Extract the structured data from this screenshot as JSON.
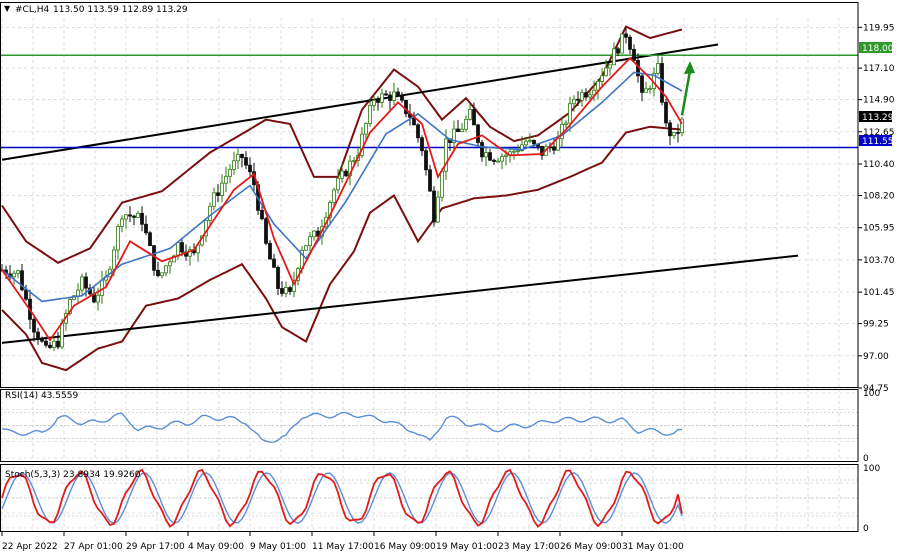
{
  "header": {
    "arrow_symbol": "▼",
    "symbol_text": "#CL,H4",
    "ohlc_text": "113.50 113.59 112.89 113.29"
  },
  "rsi_panel": {
    "label": "RSI(14) 43.5559"
  },
  "stoch_panel": {
    "label": "Stoch(5,3,3) 23.8934 19.9260"
  },
  "price_badges": {
    "green_level": "118.00",
    "current_price": "113.29",
    "blue_level": "111.55"
  },
  "colors": {
    "background": "#ffffff",
    "grid": "#c8c8c8",
    "bull_candle": "#2d7a12",
    "bear_candle": "#111111",
    "bollinger": "#7a0f0f",
    "ma_fast": "#e11b1b",
    "ma_slow": "#3d74c4",
    "channel": "#000000",
    "green_level_line": "#2e9a2e",
    "blue_level_line": "#0000c8",
    "arrow": "#1a8a1a",
    "rsi_line": "#5b8fd8",
    "stoch_main": "#e11b1b",
    "stoch_signal": "#5b8fd8"
  },
  "chart_data": {
    "type": "candlestick",
    "ylim": [
      94.75,
      120.6
    ],
    "y_ticks": [
      "119.95",
      "117.10",
      "114.90",
      "112.65",
      "110.40",
      "108.20",
      "105.95",
      "103.70",
      "101.45",
      "99.25",
      "97.00",
      "94.75"
    ],
    "x_ticks": [
      "22 Apr 2022",
      "27 Apr 01:00",
      "29 Apr 17:00",
      "4 May 09:00",
      "9 May 01:00",
      "11 May 17:00",
      "16 May 09:00",
      "19 May 01:00",
      "23 May 17:00",
      "26 May 09:00",
      "31 May 01:00"
    ],
    "levels": [
      {
        "value": 118.0,
        "color": "green"
      },
      {
        "value": 111.55,
        "color": "blue"
      }
    ],
    "channel_upper": [
      {
        "bar": 0,
        "price": 110.7
      },
      {
        "bar": 179,
        "price": 118.75
      }
    ],
    "channel_lower": [
      {
        "bar": 0,
        "price": 97.9
      },
      {
        "bar": 199,
        "price": 104.0
      }
    ],
    "arrow": {
      "from": {
        "bar": 168,
        "price": 113.8
      },
      "to": {
        "bar": 170,
        "price": 117.6
      }
    },
    "price_path": [
      [
        0,
        103.0
      ],
      [
        4,
        102.8
      ],
      [
        8,
        99.0
      ],
      [
        11,
        97.3
      ],
      [
        14,
        98.0
      ],
      [
        17,
        100.8
      ],
      [
        20,
        102.1
      ],
      [
        23,
        101.0
      ],
      [
        26,
        102.3
      ],
      [
        30,
        107.0
      ],
      [
        35,
        106.5
      ],
      [
        39,
        102.3
      ],
      [
        44,
        104.8
      ],
      [
        48,
        104.0
      ],
      [
        52,
        107.5
      ],
      [
        57,
        110.1
      ],
      [
        60,
        110.9
      ],
      [
        63,
        109.0
      ],
      [
        66,
        104.7
      ],
      [
        69,
        101.8
      ],
      [
        72,
        101.2
      ],
      [
        75,
        104.6
      ],
      [
        79,
        105.6
      ],
      [
        83,
        108.6
      ],
      [
        89,
        111.3
      ],
      [
        93,
        115.0
      ],
      [
        98,
        115.2
      ],
      [
        102,
        113.8
      ],
      [
        105,
        111.5
      ],
      [
        108,
        106.8
      ],
      [
        111,
        112.0
      ],
      [
        114,
        112.6
      ],
      [
        117,
        113.8
      ],
      [
        120,
        111.3
      ],
      [
        123,
        110.9
      ],
      [
        127,
        111.1
      ],
      [
        131,
        112.0
      ],
      [
        135,
        111.2
      ],
      [
        139,
        112.0
      ],
      [
        143,
        115.0
      ],
      [
        147,
        115.6
      ],
      [
        151,
        117.2
      ],
      [
        156,
        119.5
      ],
      [
        158,
        118.0
      ],
      [
        160,
        115.0
      ],
      [
        164,
        117.0
      ],
      [
        166,
        113.0
      ],
      [
        168,
        112.2
      ],
      [
        170,
        113.3
      ]
    ],
    "ma_fast_path": [
      [
        0,
        103.0
      ],
      [
        8,
        99.8
      ],
      [
        12,
        98.1
      ],
      [
        18,
        100.5
      ],
      [
        26,
        101.8
      ],
      [
        32,
        105.0
      ],
      [
        40,
        103.6
      ],
      [
        48,
        104.4
      ],
      [
        58,
        108.6
      ],
      [
        63,
        109.7
      ],
      [
        68,
        105.2
      ],
      [
        73,
        102.0
      ],
      [
        82,
        106.8
      ],
      [
        92,
        112.6
      ],
      [
        99,
        114.7
      ],
      [
        105,
        113.2
      ],
      [
        109,
        109.5
      ],
      [
        114,
        111.8
      ],
      [
        120,
        112.4
      ],
      [
        127,
        111.0
      ],
      [
        135,
        111.1
      ],
      [
        141,
        112.8
      ],
      [
        150,
        115.8
      ],
      [
        157,
        117.8
      ],
      [
        162,
        116.4
      ],
      [
        166,
        115.1
      ],
      [
        170,
        113.2
      ]
    ],
    "ma_slow_path": [
      [
        0,
        103.0
      ],
      [
        10,
        100.8
      ],
      [
        20,
        101.2
      ],
      [
        30,
        103.4
      ],
      [
        42,
        104.5
      ],
      [
        52,
        106.8
      ],
      [
        62,
        108.9
      ],
      [
        68,
        106.2
      ],
      [
        76,
        103.8
      ],
      [
        86,
        107.8
      ],
      [
        96,
        112.5
      ],
      [
        104,
        113.9
      ],
      [
        112,
        112.1
      ],
      [
        120,
        111.6
      ],
      [
        130,
        111.4
      ],
      [
        140,
        112.4
      ],
      [
        150,
        114.7
      ],
      [
        158,
        116.8
      ],
      [
        163,
        116.6
      ],
      [
        170,
        115.5
      ]
    ],
    "bb_upper_path": [
      [
        0,
        107.5
      ],
      [
        6,
        105.0
      ],
      [
        14,
        103.5
      ],
      [
        22,
        104.5
      ],
      [
        30,
        107.7
      ],
      [
        40,
        108.5
      ],
      [
        52,
        111.2
      ],
      [
        60,
        112.5
      ],
      [
        66,
        113.5
      ],
      [
        72,
        113.2
      ],
      [
        78,
        109.5
      ],
      [
        84,
        109.5
      ],
      [
        90,
        114.2
      ],
      [
        98,
        117.0
      ],
      [
        104,
        115.8
      ],
      [
        110,
        113.5
      ],
      [
        116,
        115.0
      ],
      [
        122,
        113.0
      ],
      [
        128,
        112.0
      ],
      [
        134,
        112.4
      ],
      [
        142,
        114.0
      ],
      [
        150,
        116.5
      ],
      [
        156,
        120.0
      ],
      [
        162,
        119.2
      ],
      [
        170,
        119.8
      ]
    ],
    "bb_lower_path": [
      [
        0,
        100.2
      ],
      [
        6,
        98.5
      ],
      [
        10,
        96.5
      ],
      [
        16,
        96.0
      ],
      [
        24,
        97.5
      ],
      [
        30,
        98.0
      ],
      [
        36,
        100.5
      ],
      [
        44,
        101.0
      ],
      [
        52,
        102.3
      ],
      [
        60,
        103.4
      ],
      [
        66,
        101.0
      ],
      [
        70,
        99.0
      ],
      [
        76,
        98.0
      ],
      [
        82,
        102.0
      ],
      [
        88,
        104.3
      ],
      [
        92,
        107.0
      ],
      [
        98,
        108.2
      ],
      [
        104,
        105.0
      ],
      [
        110,
        107.3
      ],
      [
        118,
        108.0
      ],
      [
        126,
        108.2
      ],
      [
        134,
        108.6
      ],
      [
        142,
        109.5
      ],
      [
        150,
        110.5
      ],
      [
        156,
        112.6
      ],
      [
        162,
        113.0
      ],
      [
        170,
        112.8
      ]
    ],
    "rsi": {
      "ylim": [
        0,
        100
      ],
      "levels": [
        30,
        50,
        70
      ],
      "ticks": [
        "100",
        "0"
      ],
      "last": 43.5559
    },
    "stochastic": {
      "ylim": [
        0,
        100
      ],
      "levels": [
        20,
        50,
        80
      ],
      "ticks": [
        "100",
        "0"
      ],
      "main_last": 23.8934,
      "signal_last": 19.926
    }
  }
}
